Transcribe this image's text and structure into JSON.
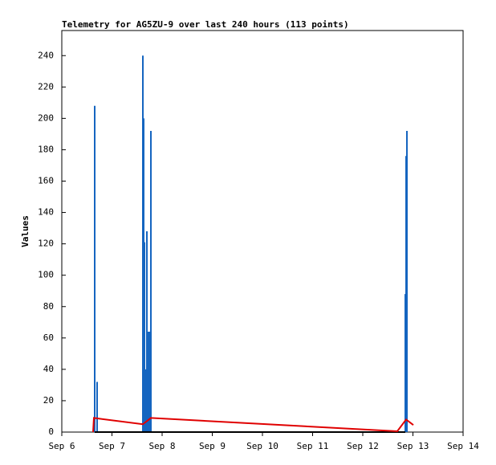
{
  "chart_data": {
    "type": "line",
    "title": "Telemetry for AG5ZU-9 over last 240 hours (113 points)",
    "y_label": "Values",
    "xlim": [
      6,
      14
    ],
    "xticks": [
      {
        "value": 6,
        "label": "Sep 6"
      },
      {
        "value": 7,
        "label": "Sep 7"
      },
      {
        "value": 8,
        "label": "Sep 8"
      },
      {
        "value": 9,
        "label": "Sep 9"
      },
      {
        "value": 10,
        "label": "Sep 10"
      },
      {
        "value": 11,
        "label": "Sep 11"
      },
      {
        "value": 12,
        "label": "Sep 12"
      },
      {
        "value": 13,
        "label": "Sep 13"
      },
      {
        "value": 14,
        "label": "Sep 14"
      }
    ],
    "ylim": [
      0,
      256
    ],
    "yticks": [
      0,
      20,
      40,
      60,
      80,
      100,
      120,
      140,
      160,
      180,
      200,
      220,
      240
    ],
    "series": [
      {
        "style": "impulse",
        "color": "#1565c0",
        "x": [
          6.656,
          6.704,
          7.616,
          7.632,
          7.648,
          7.664,
          7.696,
          7.712,
          7.744,
          7.776,
          12.848,
          12.864,
          12.88
        ],
        "values": [
          208,
          32,
          240,
          200,
          121,
          40,
          128,
          64,
          64,
          192,
          88,
          176,
          192
        ]
      },
      {
        "style": "line",
        "color": "#000000",
        "x": [
          6.656,
          12.848
        ],
        "values": [
          0,
          0
        ]
      },
      {
        "style": "line",
        "color": "#e00000",
        "x": [
          6.624,
          6.64,
          7.616,
          7.776,
          12.688,
          12.864,
          13.008
        ],
        "values": [
          0,
          9,
          5,
          9,
          0.5,
          8,
          4.5
        ]
      }
    ]
  }
}
